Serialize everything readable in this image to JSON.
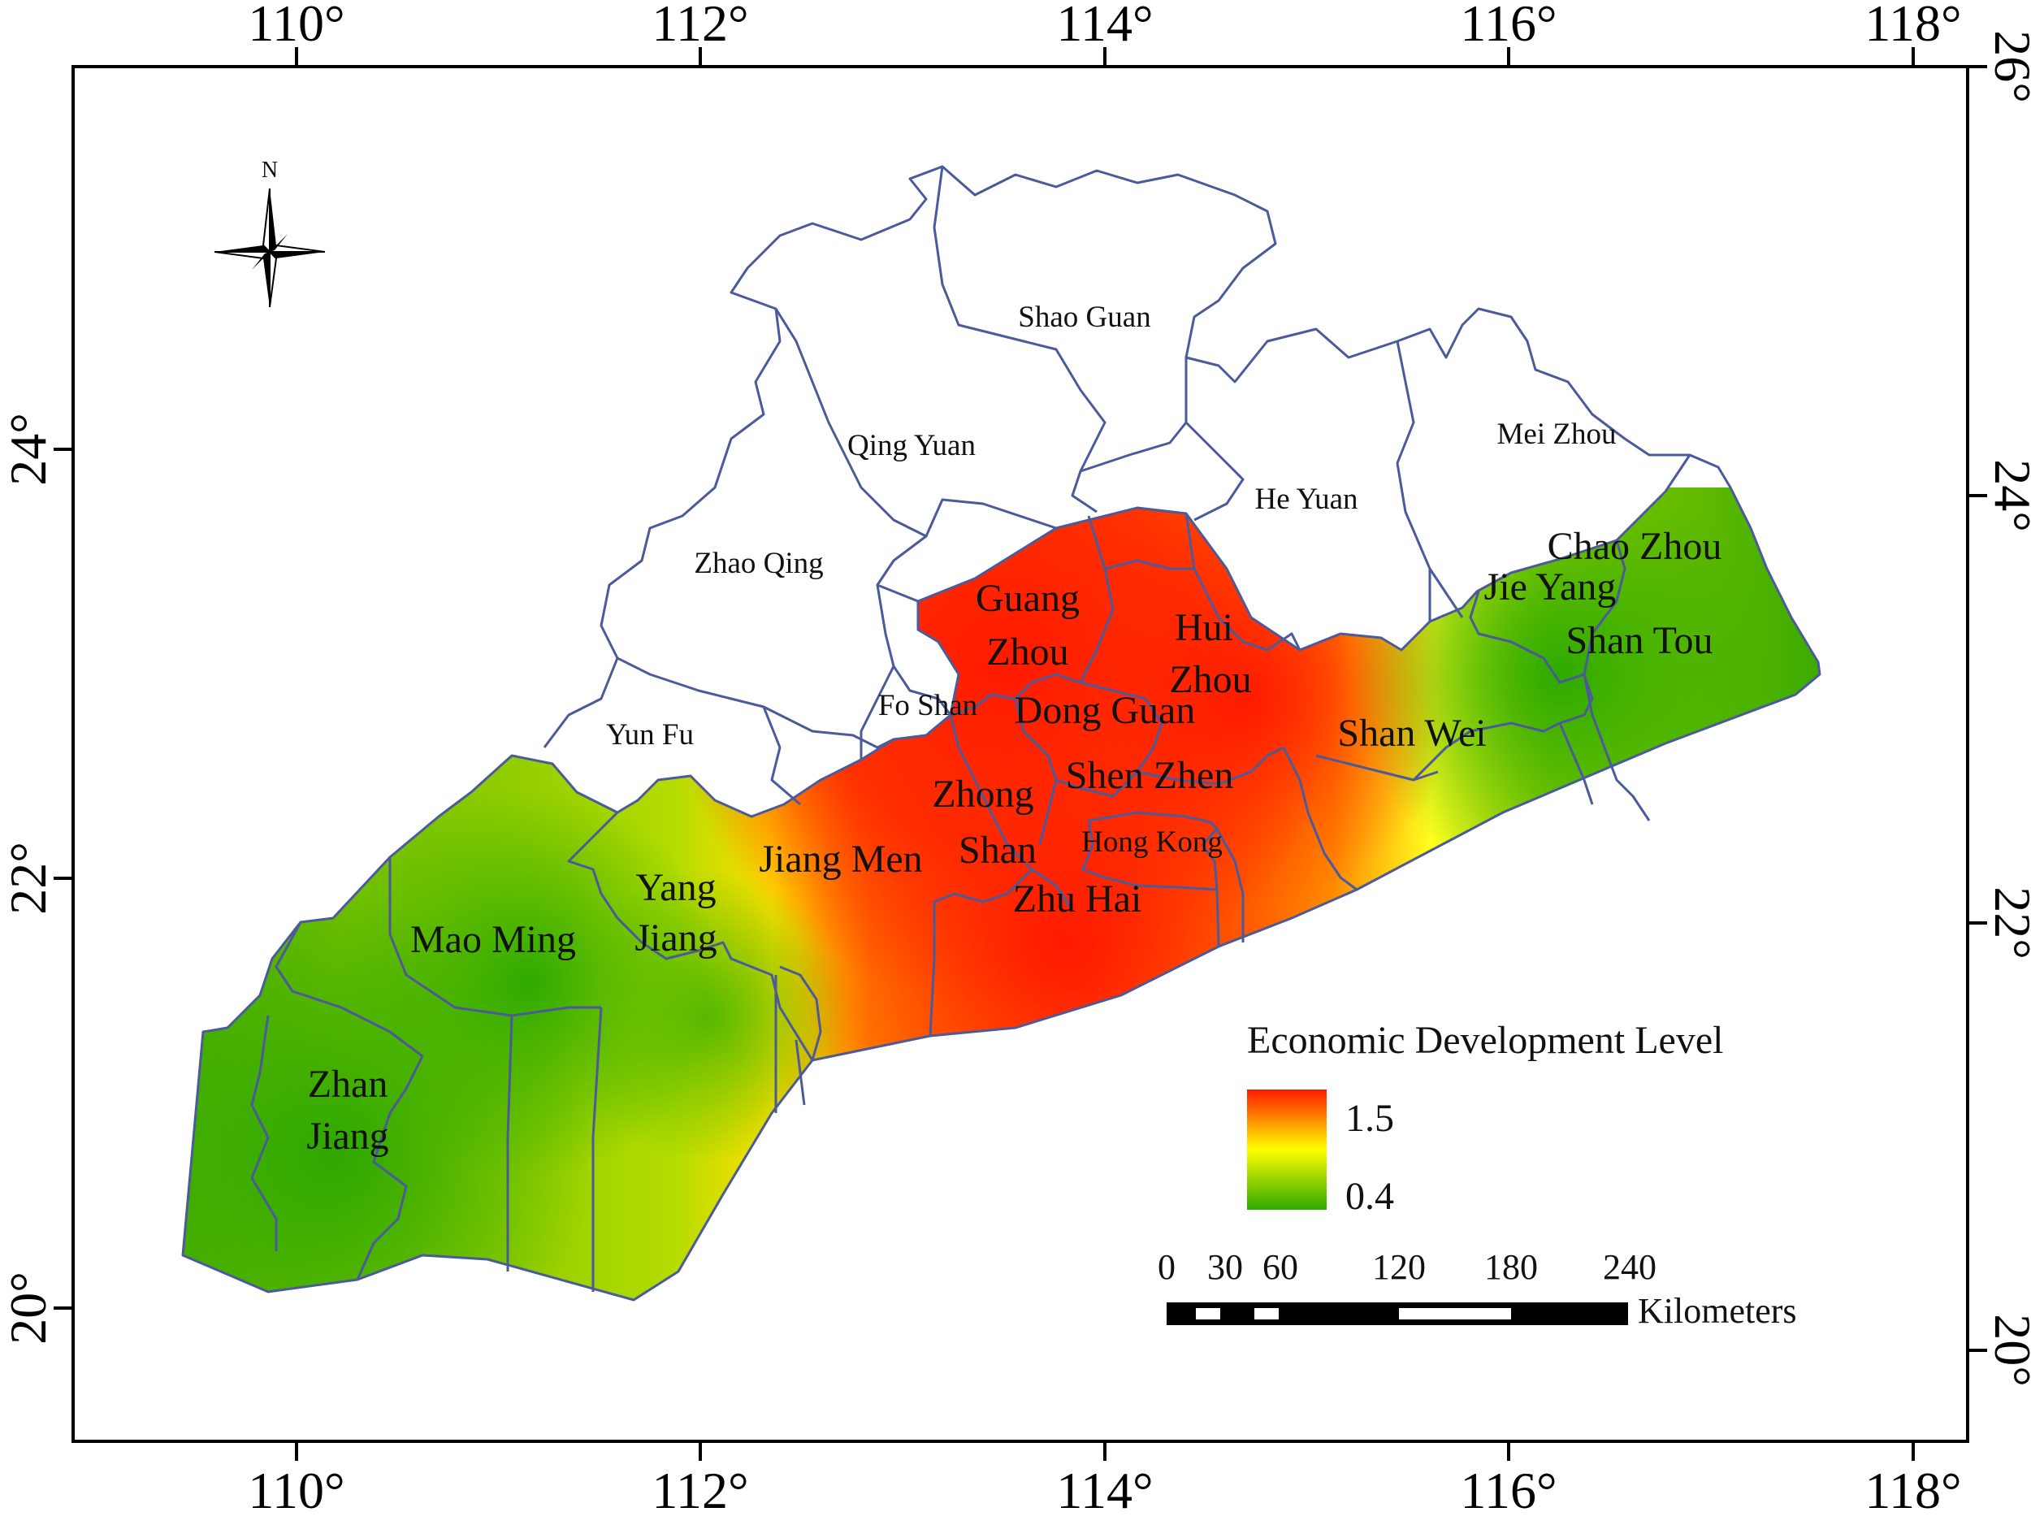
{
  "map": {
    "lon_ticks": [
      "110°",
      "112°",
      "114°",
      "116°",
      "118°"
    ],
    "lat_ticks": [
      "20°",
      "22°",
      "24°",
      "26°"
    ],
    "compass": {
      "label": "N"
    },
    "cities": [
      {
        "id": "shao-guan",
        "label": "Shao Guan",
        "level": null
      },
      {
        "id": "qing-yuan",
        "label": "Qing Yuan",
        "level": null
      },
      {
        "id": "mei-zhou",
        "label": "Mei Zhou",
        "level": null
      },
      {
        "id": "he-yuan",
        "label": "He Yuan",
        "level": null
      },
      {
        "id": "zhao-qing",
        "label": "Zhao Qing",
        "level": null
      },
      {
        "id": "yun-fu",
        "label": "Yun Fu",
        "level": null
      },
      {
        "id": "fo-shan",
        "label": "Fo Shan",
        "level": null
      },
      {
        "id": "hong-kong",
        "label": "Hong Kong",
        "level": null
      },
      {
        "id": "guang-zhou-1",
        "label": "Guang",
        "level": "high"
      },
      {
        "id": "guang-zhou-2",
        "label": "Zhou",
        "level": "high"
      },
      {
        "id": "hui-zhou-1",
        "label": "Hui",
        "level": "high"
      },
      {
        "id": "hui-zhou-2",
        "label": "Zhou",
        "level": "high"
      },
      {
        "id": "dong-guan",
        "label": "Dong Guan",
        "level": "high"
      },
      {
        "id": "shen-zhen",
        "label": "Shen Zhen",
        "level": "high"
      },
      {
        "id": "zhong-shan-1",
        "label": "Zhong",
        "level": "high"
      },
      {
        "id": "zhong-shan-2",
        "label": "Shan",
        "level": "high"
      },
      {
        "id": "zhu-hai",
        "label": "Zhu Hai",
        "level": "high"
      },
      {
        "id": "jiang-men",
        "label": "Jiang Men",
        "level": "high"
      },
      {
        "id": "shan-wei",
        "label": "Shan Wei",
        "level": "mid"
      },
      {
        "id": "chao-zhou",
        "label": "Chao Zhou",
        "level": "low"
      },
      {
        "id": "jie-yang",
        "label": "Jie Yang",
        "level": "low"
      },
      {
        "id": "shan-tou",
        "label": "Shan Tou",
        "level": "low"
      },
      {
        "id": "yang-jiang-1",
        "label": "Yang",
        "level": "mid"
      },
      {
        "id": "yang-jiang-2",
        "label": "Jiang",
        "level": "mid"
      },
      {
        "id": "mao-ming",
        "label": "Mao Ming",
        "level": "low"
      },
      {
        "id": "zhan-jiang-1",
        "label": "Zhan",
        "level": "low"
      },
      {
        "id": "zhan-jiang-2",
        "label": "Jiang",
        "level": "low"
      }
    ]
  },
  "legend": {
    "title": "Economic Development Level",
    "max_label": "1.5",
    "min_label": "0.4",
    "colors": {
      "high": "#ff1a00",
      "mid": "#ffff00",
      "low": "#2eaa00"
    }
  },
  "scale_bar": {
    "ticks": [
      "0",
      "30",
      "60",
      "120",
      "180",
      "240"
    ],
    "unit": "Kilometers"
  },
  "colors": {
    "boundary": "#4a5a9a",
    "frame": "#000000",
    "background": "#ffffff"
  }
}
